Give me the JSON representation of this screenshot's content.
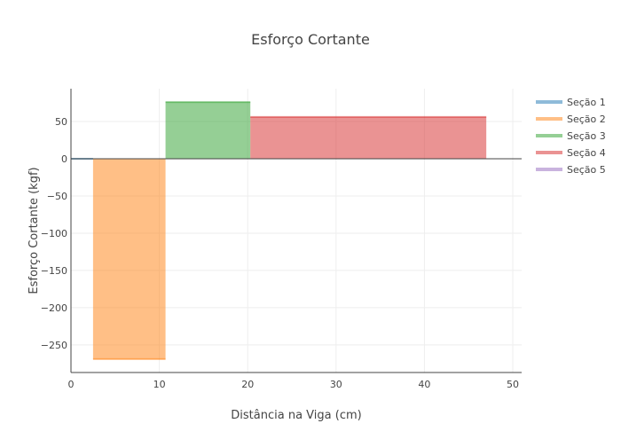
{
  "chart_data": {
    "type": "area",
    "title": "Esforço Cortante",
    "xlabel": "Distância na Viga (cm)",
    "ylabel": "Esforço Cortante (kgf)",
    "xlim": [
      0,
      51
    ],
    "ylim": [
      -287,
      94
    ],
    "x_ticks": [
      {
        "value": 0,
        "label": "0"
      },
      {
        "value": 10,
        "label": "10"
      },
      {
        "value": 20,
        "label": "20"
      },
      {
        "value": 30,
        "label": "30"
      },
      {
        "value": 40,
        "label": "40"
      },
      {
        "value": 50,
        "label": "50"
      }
    ],
    "y_ticks": [
      {
        "value": 50,
        "label": "50"
      },
      {
        "value": 0,
        "label": "0"
      },
      {
        "value": -50,
        "label": "−50"
      },
      {
        "value": -100,
        "label": "−100"
      },
      {
        "value": -150,
        "label": "−150"
      },
      {
        "value": -200,
        "label": "−200"
      },
      {
        "value": -250,
        "label": "−250"
      }
    ],
    "grid": true,
    "legend_position": "top-right",
    "series": [
      {
        "name": "Seção 1",
        "color": "#1f77b4",
        "x": [
          0,
          2.5
        ],
        "y": [
          0,
          0
        ]
      },
      {
        "name": "Seção 2",
        "color": "#ff7f0e",
        "x": [
          2.5,
          10.7
        ],
        "y": [
          -269,
          -269
        ]
      },
      {
        "name": "Seção 3",
        "color": "#2ca02c",
        "x": [
          10.7,
          20.3
        ],
        "y": [
          76,
          76
        ]
      },
      {
        "name": "Seção 4",
        "color": "#d62728",
        "x": [
          20.3,
          47
        ],
        "y": [
          56,
          56
        ]
      },
      {
        "name": "Seção 5",
        "color": "#9467bd",
        "x": [
          47,
          47
        ],
        "y": [
          0,
          0
        ]
      }
    ]
  }
}
